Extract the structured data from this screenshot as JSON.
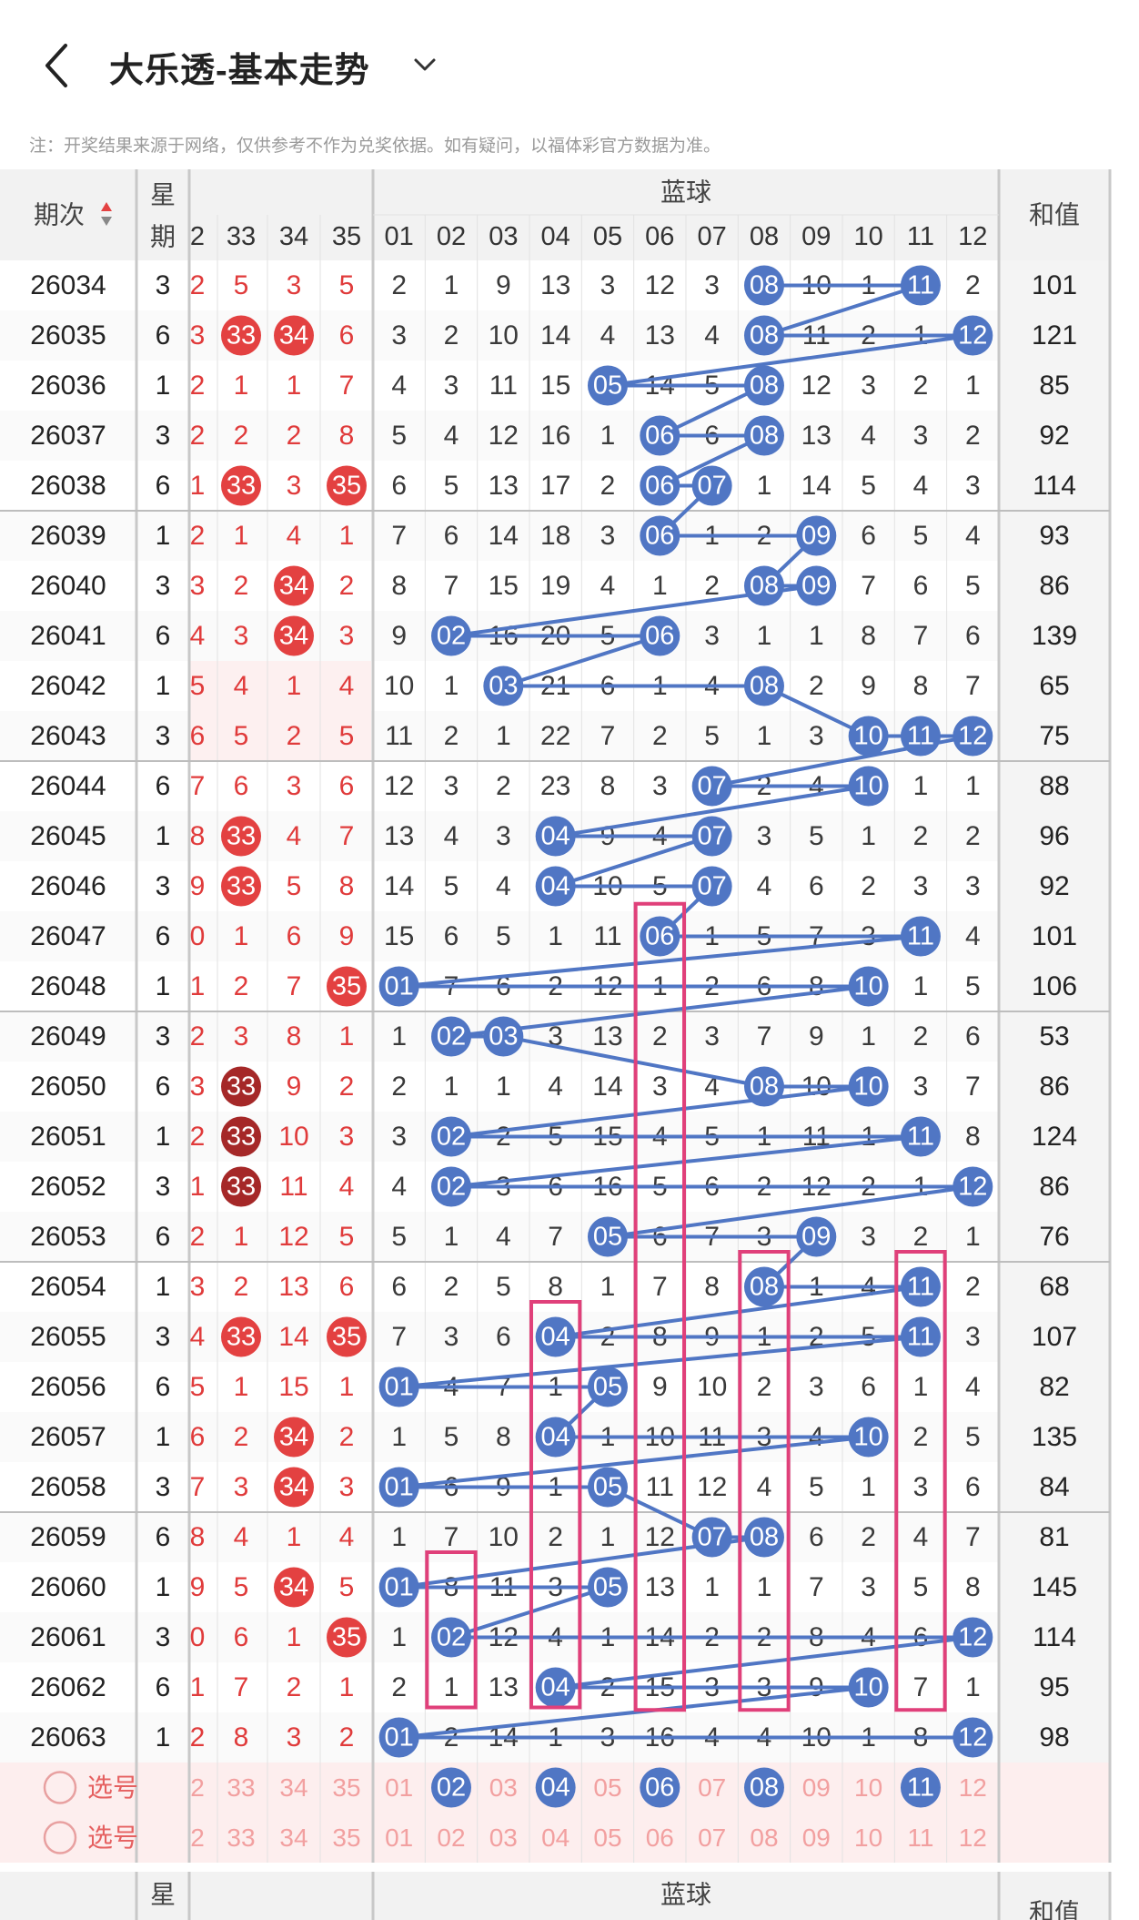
{
  "header": {
    "title": "大乐透-基本走势"
  },
  "notice": "注：开奖结果来源于网络，仅供参考不作为兑奖依据。如有疑问，以福体彩官方数据为准。",
  "table": {
    "col_issue": "期次",
    "col_week": "星期",
    "col_blue": "蓝球",
    "col_sum": "和值",
    "red_headers": [
      "2",
      "33",
      "34",
      "35"
    ],
    "blue_headers": [
      "01",
      "02",
      "03",
      "04",
      "05",
      "06",
      "07",
      "08",
      "09",
      "10",
      "11",
      "12"
    ],
    "select_label": "选号",
    "rows": [
      {
        "issue": "26034",
        "week": "3",
        "red": [
          "2",
          "5",
          "3",
          "5"
        ],
        "blue": [
          "2",
          "1",
          "9",
          "13",
          "3",
          "12",
          "3",
          "08",
          "10",
          "1",
          "11",
          "2"
        ],
        "sum": "101"
      },
      {
        "issue": "26035",
        "week": "6",
        "red": [
          "3",
          "33",
          "34",
          "6"
        ],
        "blue": [
          "3",
          "2",
          "10",
          "14",
          "4",
          "13",
          "4",
          "08",
          "11",
          "2",
          "1",
          "12"
        ],
        "sum": "121"
      },
      {
        "issue": "26036",
        "week": "1",
        "red": [
          "2",
          "1",
          "1",
          "7"
        ],
        "blue": [
          "4",
          "3",
          "11",
          "15",
          "05",
          "14",
          "5",
          "08",
          "12",
          "3",
          "2",
          "1"
        ],
        "sum": "85"
      },
      {
        "issue": "26037",
        "week": "3",
        "red": [
          "2",
          "2",
          "2",
          "8"
        ],
        "blue": [
          "5",
          "4",
          "12",
          "16",
          "1",
          "06",
          "6",
          "08",
          "13",
          "4",
          "3",
          "2"
        ],
        "sum": "92"
      },
      {
        "issue": "26038",
        "week": "6",
        "red": [
          "1",
          "33",
          "3",
          "35"
        ],
        "blue": [
          "6",
          "5",
          "13",
          "17",
          "2",
          "06",
          "07",
          "1",
          "14",
          "5",
          "4",
          "3"
        ],
        "sum": "114"
      },
      {
        "issue": "26039",
        "week": "1",
        "red": [
          "2",
          "1",
          "4",
          "1"
        ],
        "blue": [
          "7",
          "6",
          "14",
          "18",
          "3",
          "06",
          "1",
          "2",
          "09",
          "6",
          "5",
          "4"
        ],
        "sum": "93"
      },
      {
        "issue": "26040",
        "week": "3",
        "red": [
          "3",
          "2",
          "34",
          "2"
        ],
        "blue": [
          "8",
          "7",
          "15",
          "19",
          "4",
          "1",
          "2",
          "08",
          "09",
          "7",
          "6",
          "5"
        ],
        "sum": "86"
      },
      {
        "issue": "26041",
        "week": "6",
        "red": [
          "4",
          "3",
          "34",
          "3"
        ],
        "blue": [
          "9",
          "02",
          "16",
          "20",
          "5",
          "06",
          "3",
          "1",
          "1",
          "8",
          "7",
          "6"
        ],
        "sum": "139"
      },
      {
        "issue": "26042",
        "week": "1",
        "red": [
          "5",
          "4",
          "1",
          "4"
        ],
        "blue": [
          "10",
          "1",
          "03",
          "21",
          "6",
          "1",
          "4",
          "08",
          "2",
          "9",
          "8",
          "7"
        ],
        "sum": "65"
      },
      {
        "issue": "26043",
        "week": "3",
        "red": [
          "6",
          "5",
          "2",
          "5"
        ],
        "blue": [
          "11",
          "2",
          "1",
          "22",
          "7",
          "2",
          "5",
          "1",
          "3",
          "10",
          "11",
          "12"
        ],
        "sum": "75"
      },
      {
        "issue": "26044",
        "week": "6",
        "red": [
          "7",
          "6",
          "3",
          "6"
        ],
        "blue": [
          "12",
          "3",
          "2",
          "23",
          "8",
          "3",
          "07",
          "2",
          "4",
          "10",
          "1",
          "1"
        ],
        "sum": "88"
      },
      {
        "issue": "26045",
        "week": "1",
        "red": [
          "8",
          "33",
          "4",
          "7"
        ],
        "blue": [
          "13",
          "4",
          "3",
          "04",
          "9",
          "4",
          "07",
          "3",
          "5",
          "1",
          "2",
          "2"
        ],
        "sum": "96"
      },
      {
        "issue": "26046",
        "week": "3",
        "red": [
          "9",
          "33",
          "5",
          "8"
        ],
        "blue": [
          "14",
          "5",
          "4",
          "04",
          "10",
          "5",
          "07",
          "4",
          "6",
          "2",
          "3",
          "3"
        ],
        "sum": "92"
      },
      {
        "issue": "26047",
        "week": "6",
        "red": [
          "0",
          "1",
          "6",
          "9"
        ],
        "blue": [
          "15",
          "6",
          "5",
          "1",
          "11",
          "06",
          "1",
          "5",
          "7",
          "3",
          "11",
          "4"
        ],
        "sum": "101"
      },
      {
        "issue": "26048",
        "week": "1",
        "red": [
          "1",
          "2",
          "7",
          "35"
        ],
        "blue": [
          "01",
          "7",
          "6",
          "2",
          "12",
          "1",
          "2",
          "6",
          "8",
          "10",
          "1",
          "5"
        ],
        "sum": "106"
      },
      {
        "issue": "26049",
        "week": "3",
        "red": [
          "2",
          "3",
          "8",
          "1"
        ],
        "blue": [
          "1",
          "02",
          "03",
          "3",
          "13",
          "2",
          "3",
          "7",
          "9",
          "1",
          "2",
          "6"
        ],
        "sum": "53"
      },
      {
        "issue": "26050",
        "week": "6",
        "red": [
          "3",
          "33",
          "9",
          "2"
        ],
        "blue": [
          "2",
          "1",
          "1",
          "4",
          "14",
          "3",
          "4",
          "08",
          "10",
          "10",
          "3",
          "7"
        ],
        "sum": "86"
      },
      {
        "issue": "26051",
        "week": "1",
        "red": [
          "2",
          "33",
          "10",
          "3"
        ],
        "blue": [
          "3",
          "02",
          "2",
          "5",
          "15",
          "4",
          "5",
          "1",
          "11",
          "1",
          "11",
          "8"
        ],
        "sum": "124"
      },
      {
        "issue": "26052",
        "week": "3",
        "red": [
          "1",
          "33",
          "11",
          "4"
        ],
        "blue": [
          "4",
          "02",
          "3",
          "6",
          "16",
          "5",
          "6",
          "2",
          "12",
          "2",
          "1",
          "12"
        ],
        "sum": "86"
      },
      {
        "issue": "26053",
        "week": "6",
        "red": [
          "2",
          "1",
          "12",
          "5"
        ],
        "blue": [
          "5",
          "1",
          "4",
          "7",
          "05",
          "6",
          "7",
          "3",
          "09",
          "3",
          "2",
          "1"
        ],
        "sum": "76"
      },
      {
        "issue": "26054",
        "week": "1",
        "red": [
          "3",
          "2",
          "13",
          "6"
        ],
        "blue": [
          "6",
          "2",
          "5",
          "8",
          "1",
          "7",
          "8",
          "08",
          "1",
          "4",
          "11",
          "2"
        ],
        "sum": "68"
      },
      {
        "issue": "26055",
        "week": "3",
        "red": [
          "4",
          "33",
          "14",
          "35"
        ],
        "blue": [
          "7",
          "3",
          "6",
          "04",
          "2",
          "8",
          "9",
          "1",
          "2",
          "5",
          "11",
          "3"
        ],
        "sum": "107"
      },
      {
        "issue": "26056",
        "week": "6",
        "red": [
          "5",
          "1",
          "15",
          "1"
        ],
        "blue": [
          "01",
          "4",
          "7",
          "1",
          "05",
          "9",
          "10",
          "2",
          "3",
          "6",
          "1",
          "4"
        ],
        "sum": "82"
      },
      {
        "issue": "26057",
        "week": "1",
        "red": [
          "6",
          "2",
          "34",
          "2"
        ],
        "blue": [
          "1",
          "5",
          "8",
          "04",
          "1",
          "10",
          "11",
          "3",
          "4",
          "10",
          "2",
          "5"
        ],
        "sum": "135"
      },
      {
        "issue": "26058",
        "week": "3",
        "red": [
          "7",
          "3",
          "34",
          "3"
        ],
        "blue": [
          "01",
          "6",
          "9",
          "1",
          "05",
          "11",
          "12",
          "4",
          "5",
          "1",
          "3",
          "6"
        ],
        "sum": "84"
      },
      {
        "issue": "26059",
        "week": "6",
        "red": [
          "8",
          "4",
          "1",
          "4"
        ],
        "blue": [
          "1",
          "7",
          "10",
          "2",
          "1",
          "12",
          "07",
          "08",
          "6",
          "2",
          "4",
          "7"
        ],
        "sum": "81"
      },
      {
        "issue": "26060",
        "week": "1",
        "red": [
          "9",
          "5",
          "34",
          "5"
        ],
        "blue": [
          "01",
          "8",
          "11",
          "3",
          "05",
          "13",
          "1",
          "1",
          "7",
          "3",
          "5",
          "8"
        ],
        "sum": "145"
      },
      {
        "issue": "26061",
        "week": "3",
        "red": [
          "0",
          "6",
          "1",
          "35"
        ],
        "blue": [
          "1",
          "02",
          "12",
          "4",
          "1",
          "14",
          "2",
          "2",
          "8",
          "4",
          "6",
          "12"
        ],
        "sum": "114"
      },
      {
        "issue": "26062",
        "week": "6",
        "red": [
          "1",
          "7",
          "2",
          "1"
        ],
        "blue": [
          "2",
          "1",
          "13",
          "04",
          "2",
          "15",
          "3",
          "3",
          "9",
          "10",
          "7",
          "1"
        ],
        "sum": "95"
      },
      {
        "issue": "26063",
        "week": "1",
        "red": [
          "2",
          "8",
          "3",
          "2"
        ],
        "blue": [
          "01",
          "2",
          "14",
          "1",
          "3",
          "16",
          "4",
          "4",
          "10",
          "1",
          "8",
          "12"
        ],
        "sum": "98"
      }
    ],
    "highlight_balls": [
      "02",
      "04",
      "06",
      "08",
      "11"
    ],
    "footer": {
      "issue": "-",
      "week": "星期",
      "blue": "蓝球",
      "sum": "和值"
    }
  },
  "colors": {
    "blue_ball": "#5076c4",
    "red_ball": "#e34141",
    "dark_red_ball": "#a52828",
    "magenta_box": "#e0407a",
    "header_bg": "#f2f2f2",
    "select_bg": "#fdeeee"
  }
}
